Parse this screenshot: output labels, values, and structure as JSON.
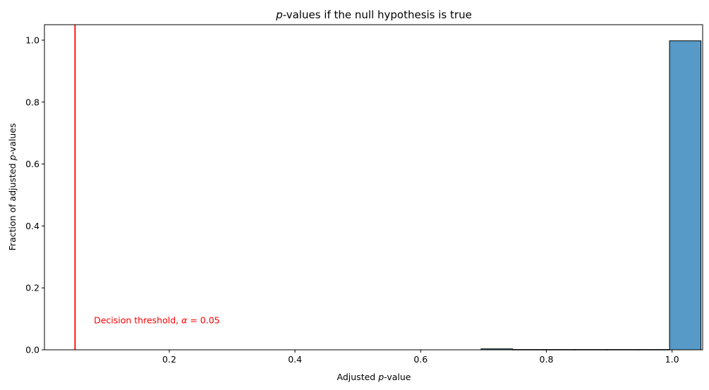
{
  "chart_data": {
    "type": "bar",
    "title": {
      "italic": "p",
      "rest": "-values if the null hypothesis is true"
    },
    "xlabel": {
      "prefix": "Adjusted ",
      "italic": "p",
      "suffix": "-value"
    },
    "ylabel": {
      "prefix": "Fraction of adjusted ",
      "italic": "p",
      "suffix": "-values"
    },
    "xlim": [
      0.0013,
      1.0487
    ],
    "ylim": [
      0,
      1.05
    ],
    "xticks": [
      0.2,
      0.4,
      0.6,
      0.8,
      1.0
    ],
    "xtick_labels": [
      "0.2",
      "0.4",
      "0.6",
      "0.8",
      "1.0"
    ],
    "yticks": [
      0.0,
      0.2,
      0.4,
      0.6,
      0.8,
      1.0
    ],
    "ytick_labels": [
      "0.0",
      "0.2",
      "0.4",
      "0.6",
      "0.8",
      "1.0"
    ],
    "grid": false,
    "bins": [
      {
        "x0": 0.696,
        "x1": 0.746,
        "value": 0.003
      },
      {
        "x0": 0.746,
        "x1": 0.796,
        "value": 0.001
      },
      {
        "x0": 0.796,
        "x1": 0.846,
        "value": 0.001
      },
      {
        "x0": 0.846,
        "x1": 0.896,
        "value": 0.001
      },
      {
        "x0": 0.896,
        "x1": 0.946,
        "value": 0.001
      },
      {
        "x0": 0.946,
        "x1": 0.996,
        "value": 0.001
      },
      {
        "x0": 0.996,
        "x1": 1.046,
        "value": 0.998
      }
    ],
    "bar_color": "#5799c7",
    "threshold": {
      "x": 0.05,
      "color": "#ff0000",
      "label": "Decision threshold, ",
      "alpha_symbol": "α",
      "alpha_text": " = 0.05",
      "label_x": 0.08,
      "label_y": 0.085
    }
  }
}
